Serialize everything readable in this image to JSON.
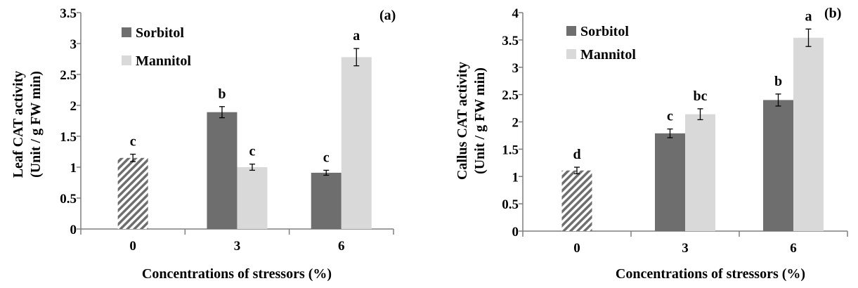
{
  "colors": {
    "sorbitol": "#6e6e6e",
    "mannitol": "#d9d9d9",
    "control_hatch": "#6e6e6e",
    "axis": "#7f7f7f"
  },
  "chart_data": [
    {
      "type": "bar",
      "panel_label": "(a)",
      "xlabel": "Concentrations of stressors (%)",
      "ylabel_line1": "Leaf CAT activity",
      "ylabel_line2": "(Unit / g FW min)",
      "ylim": [
        0,
        3.5
      ],
      "y_ticks": [
        "0",
        "0.5",
        "1",
        "1.5",
        "2",
        "2.5",
        "3",
        "3.5"
      ],
      "tick_step": 0.5,
      "categories": [
        "0",
        "3",
        "6"
      ],
      "legend_position": "top-left",
      "grid": false,
      "control": {
        "value": 1.15,
        "error": 0.06,
        "label": "c",
        "pattern": "diagonal-hatch"
      },
      "series": [
        {
          "name": "Sorbitol",
          "color_key": "sorbitol",
          "values": [
            null,
            1.89,
            0.91
          ],
          "errors": [
            null,
            0.09,
            0.04
          ],
          "labels": [
            null,
            "b",
            "c"
          ]
        },
        {
          "name": "Mannitol",
          "color_key": "mannitol",
          "values": [
            null,
            1.0,
            2.78
          ],
          "errors": [
            null,
            0.05,
            0.14
          ],
          "labels": [
            null,
            "c",
            "a"
          ]
        }
      ]
    },
    {
      "type": "bar",
      "panel_label": "(b)",
      "xlabel": "Concentrations of stressors (%)",
      "ylabel_line1": "Callus CAT activity",
      "ylabel_line2": "(Unit / g FW min)",
      "ylim": [
        0,
        4
      ],
      "y_ticks": [
        "0",
        "0.5",
        "1",
        "1.5",
        "2",
        "2.5",
        "3",
        "3.5",
        "4"
      ],
      "tick_step": 0.5,
      "categories": [
        "0",
        "3",
        "6"
      ],
      "legend_position": "top-left",
      "grid": false,
      "control": {
        "value": 1.11,
        "error": 0.06,
        "label": "d",
        "pattern": "diagonal-hatch"
      },
      "series": [
        {
          "name": "Sorbitol",
          "color_key": "sorbitol",
          "values": [
            null,
            1.79,
            2.4
          ],
          "errors": [
            null,
            0.08,
            0.11
          ],
          "labels": [
            null,
            "c",
            "b"
          ]
        },
        {
          "name": "Mannitol",
          "color_key": "mannitol",
          "values": [
            null,
            2.14,
            3.54
          ],
          "errors": [
            null,
            0.1,
            0.16
          ],
          "labels": [
            null,
            "bc",
            "a"
          ]
        }
      ]
    }
  ]
}
